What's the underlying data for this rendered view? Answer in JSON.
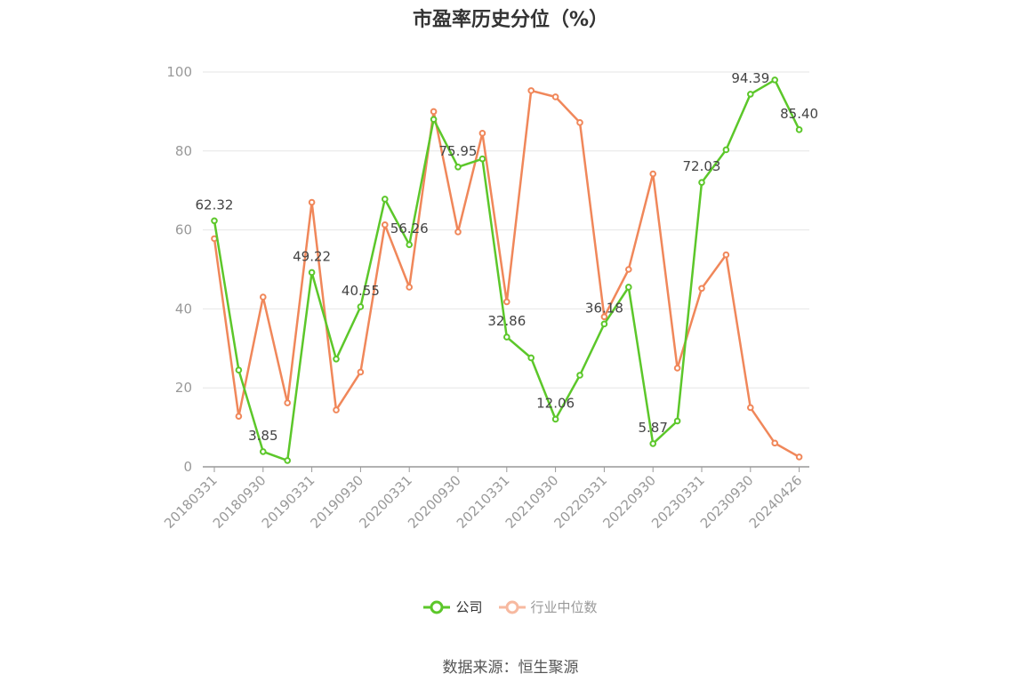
{
  "chart_data": {
    "type": "line",
    "title": "市盈率历史分位（%）",
    "xlabel": "",
    "ylabel": "",
    "ylim": [
      0,
      100
    ],
    "yticks": [
      0,
      20,
      40,
      60,
      80,
      100
    ],
    "grid": true,
    "legend_position": "bottom",
    "x": [
      "20180331",
      "20180630",
      "20180930",
      "20181231",
      "20190331",
      "20190630",
      "20190930",
      "20191231",
      "20200331",
      "20200630",
      "20200930",
      "20201231",
      "20210331",
      "20210630",
      "20210930",
      "20211231",
      "20220331",
      "20220630",
      "20220930",
      "20221231",
      "20230331",
      "20230630",
      "20230930",
      "20231231",
      "20240426"
    ],
    "xticks": [
      "20180331",
      "20180930",
      "20190331",
      "20190930",
      "20200331",
      "20200930",
      "20210331",
      "20210930",
      "20220331",
      "20220930",
      "20230331",
      "20230930",
      "20240426"
    ],
    "series": [
      {
        "name": "公司",
        "color": "#5cc72a",
        "values": [
          62.32,
          24.5,
          3.85,
          1.6,
          49.22,
          27.3,
          40.55,
          67.8,
          56.26,
          88.0,
          75.95,
          78.0,
          32.86,
          27.6,
          12.06,
          23.2,
          36.18,
          45.5,
          5.87,
          11.6,
          72.03,
          80.3,
          94.39,
          98.0,
          85.4
        ],
        "labels": [
          "62.32",
          "",
          "3.85",
          "",
          "49.22",
          "",
          "40.55",
          "",
          "56.26",
          "",
          "75.95",
          "",
          "32.86",
          "",
          "12.06",
          "",
          "36.18",
          "",
          "5.87",
          "",
          "72.03",
          "",
          "94.39",
          "",
          "85.40"
        ]
      },
      {
        "name": "行业中位数",
        "color": "#f0875a",
        "values": [
          57.8,
          12.8,
          43.0,
          16.2,
          67.0,
          14.4,
          24.0,
          61.3,
          45.5,
          90.0,
          59.5,
          84.5,
          41.8,
          95.3,
          93.7,
          87.2,
          38.0,
          50.0,
          74.2,
          25.0,
          45.2,
          53.7,
          15.0,
          6.0,
          2.5
        ]
      }
    ]
  },
  "legend": {
    "company_label": "公司",
    "industry_label": "行业中位数"
  },
  "footer": {
    "source": "数据来源：恒生聚源"
  }
}
